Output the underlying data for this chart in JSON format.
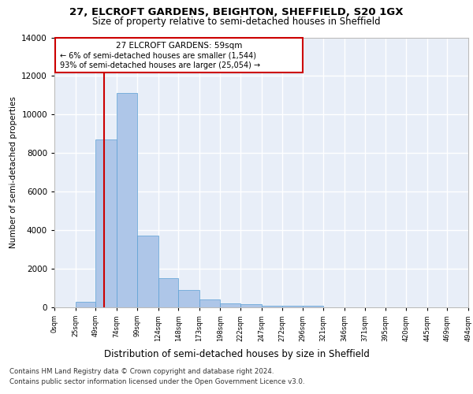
{
  "title1": "27, ELCROFT GARDENS, BEIGHTON, SHEFFIELD, S20 1GX",
  "title2": "Size of property relative to semi-detached houses in Sheffield",
  "xlabel": "Distribution of semi-detached houses by size in Sheffield",
  "ylabel": "Number of semi-detached properties",
  "footer1": "Contains HM Land Registry data © Crown copyright and database right 2024.",
  "footer2": "Contains public sector information licensed under the Open Government Licence v3.0.",
  "annotation_title": "27 ELCROFT GARDENS: 59sqm",
  "annotation_line1": "← 6% of semi-detached houses are smaller (1,544)",
  "annotation_line2": "93% of semi-detached houses are larger (25,054) →",
  "property_size": 59,
  "bar_edges": [
    0,
    25,
    49,
    74,
    99,
    124,
    148,
    173,
    198,
    222,
    247,
    272,
    296,
    321,
    346,
    371,
    395,
    420,
    445,
    469,
    494
  ],
  "bar_heights": [
    0,
    300,
    8700,
    11100,
    3700,
    1500,
    900,
    400,
    200,
    150,
    100,
    100,
    100,
    0,
    0,
    0,
    0,
    0,
    0,
    0
  ],
  "bar_color": "#aec6e8",
  "bar_edgecolor": "#5a9fd4",
  "redline_color": "#cc0000",
  "background_color": "#ffffff",
  "plot_bg_color": "#e8eef8",
  "grid_color": "#ffffff",
  "ylim": [
    0,
    14000
  ],
  "yticks": [
    0,
    2000,
    4000,
    6000,
    8000,
    10000,
    12000,
    14000
  ],
  "tick_labels": [
    "0sqm",
    "25sqm",
    "49sqm",
    "74sqm",
    "99sqm",
    "124sqm",
    "148sqm",
    "173sqm",
    "198sqm",
    "222sqm",
    "247sqm",
    "272sqm",
    "296sqm",
    "321sqm",
    "346sqm",
    "371sqm",
    "395sqm",
    "420sqm",
    "445sqm",
    "469sqm",
    "494sqm"
  ]
}
